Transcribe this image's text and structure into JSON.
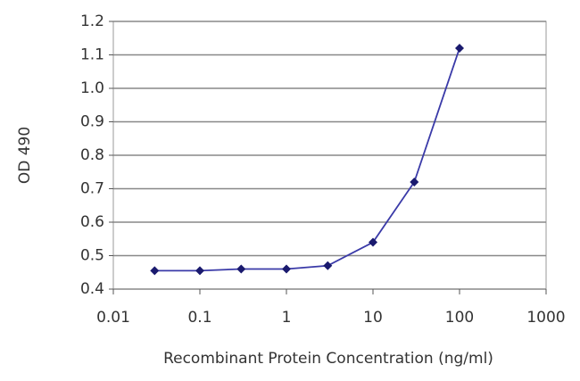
{
  "chart_data": {
    "type": "line",
    "x_label": "Recombinant Protein Concentration (ng/ml)",
    "y_label": "OD 490",
    "x": [
      0.03,
      0.1,
      0.3,
      1,
      3,
      10,
      30,
      100
    ],
    "series": [
      {
        "color": "#3a3aa8",
        "marker_color": "#1a1a6e",
        "values": [
          0.455,
          0.455,
          0.46,
          0.46,
          0.47,
          0.54,
          0.72,
          1.12
        ]
      }
    ],
    "xlim": [
      0.01,
      1000
    ],
    "xticks": [
      0.01,
      0.1,
      1,
      10,
      100,
      1000
    ],
    "x_log": true,
    "ylim": [
      0.4,
      1.2
    ],
    "yticks": [
      0.4,
      0.5,
      0.6,
      0.7,
      0.8,
      0.9,
      {
        "value": 1,
        "label": "1.0"
      },
      1.1,
      1.2
    ],
    "grid": true
  }
}
